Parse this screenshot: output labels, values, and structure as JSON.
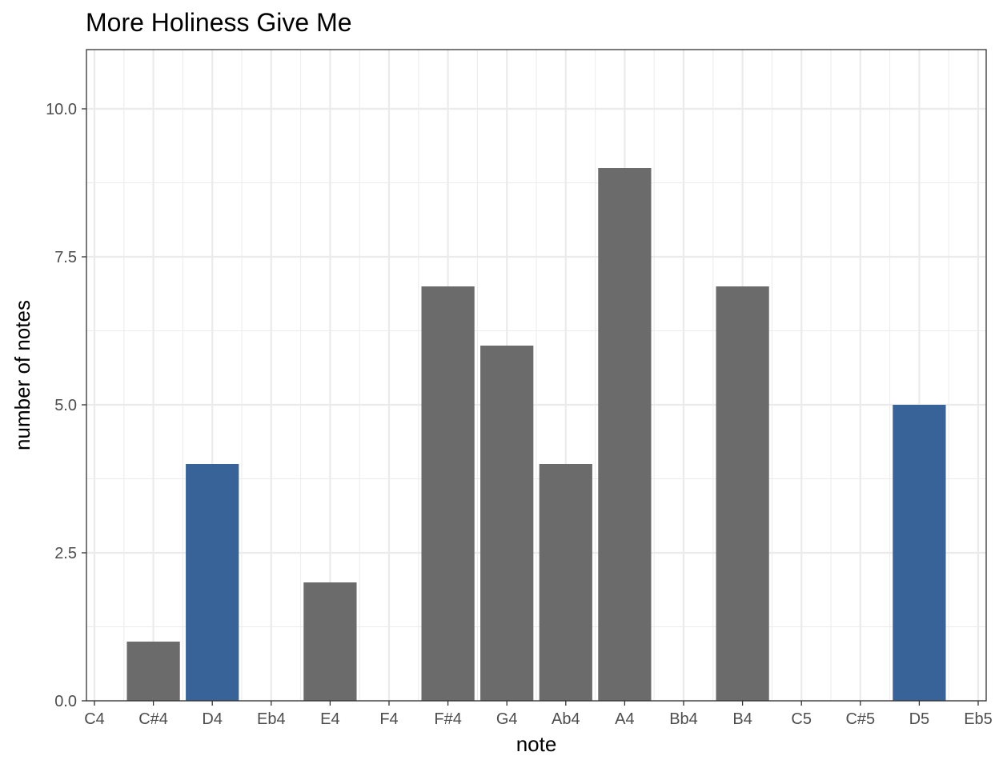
{
  "chart_data": {
    "type": "bar",
    "title": "More Holiness Give Me",
    "xlabel": "note",
    "ylabel": "number of notes",
    "categories": [
      "C4",
      "C#4",
      "D4",
      "Eb4",
      "E4",
      "F4",
      "F#4",
      "G4",
      "Ab4",
      "A4",
      "Bb4",
      "B4",
      "C5",
      "C#5",
      "D5",
      "Eb5"
    ],
    "values": [
      0,
      1,
      4,
      0,
      2,
      0,
      7,
      6,
      4,
      9,
      0,
      7,
      0,
      0,
      5,
      0
    ],
    "highlighted": [
      false,
      false,
      true,
      false,
      false,
      false,
      false,
      false,
      false,
      false,
      false,
      false,
      false,
      false,
      true,
      false
    ],
    "ylim": [
      0,
      11
    ],
    "yticks": [
      "0.0",
      "2.5",
      "5.0",
      "7.5",
      "10.0"
    ],
    "grid": true,
    "legend": "none",
    "colors": {
      "default_bar": "#6b6b6b",
      "highlight_bar": "#386399",
      "grid": "#ebebeb",
      "panel_border": "#333333"
    }
  }
}
